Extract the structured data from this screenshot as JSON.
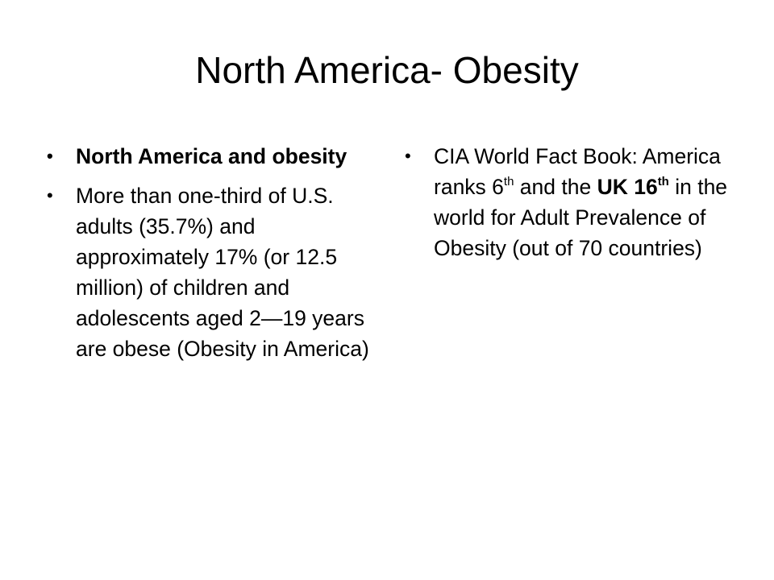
{
  "slide": {
    "title": "North America- Obesity",
    "left_column": {
      "bullets": [
        {
          "text": "North America and obesity"
        },
        {
          "text": "More than one-third of U.S. adults (35.7%) and approximately 17% (or 12.5 million) of children and adolescents aged 2—19 years are obese (Obesity in America)"
        }
      ]
    },
    "right_column": {
      "bullets": [
        {
          "text_part1": "CIA World Fact Book: America ranks 6",
          "sup1": "th",
          "text_part2": " and the ",
          "bold_part": "UK 16",
          "sup2": "th",
          "text_part3": " in the world for Adult Prevalence of Obesity (out of 70 countries)"
        }
      ]
    },
    "bullet_glyph": "•"
  }
}
